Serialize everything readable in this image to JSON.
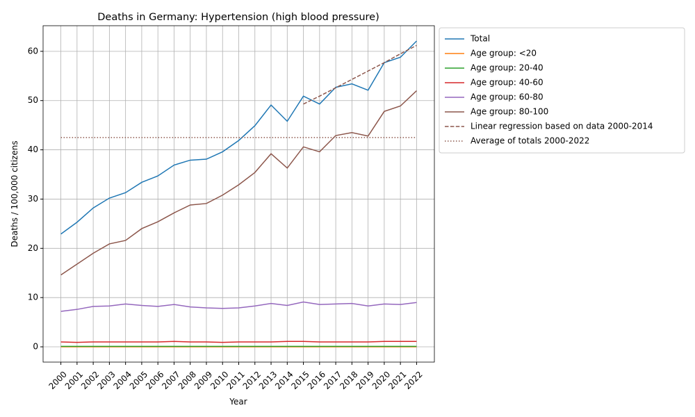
{
  "chart_data": {
    "type": "line",
    "title": "Deaths in Germany: Hypertension (high blood pressure)",
    "xlabel": "Year",
    "ylabel": "Deaths / 100,000 citizens",
    "x": [
      2000,
      2001,
      2002,
      2003,
      2004,
      2005,
      2006,
      2007,
      2008,
      2009,
      2010,
      2011,
      2012,
      2013,
      2014,
      2015,
      2016,
      2017,
      2018,
      2019,
      2020,
      2021,
      2022
    ],
    "series": [
      {
        "name": "Total",
        "color": "#1f77b4",
        "linestyle": "solid",
        "values": [
          22.9,
          25.3,
          28.2,
          30.2,
          31.3,
          33.4,
          34.7,
          36.9,
          37.9,
          38.1,
          39.6,
          41.9,
          44.9,
          49.1,
          45.8,
          50.9,
          49.3,
          52.7,
          53.4,
          52.1,
          57.7,
          58.8,
          62.1
        ]
      },
      {
        "name": "Age group: <20",
        "color": "#ff7f0e",
        "linestyle": "solid",
        "values": [
          0,
          0,
          0,
          0,
          0,
          0,
          0,
          0,
          0,
          0,
          0,
          0,
          0,
          0,
          0,
          0,
          0,
          0,
          0,
          0,
          0,
          0,
          0
        ]
      },
      {
        "name": "Age group: 20-40",
        "color": "#2ca02c",
        "linestyle": "solid",
        "values": [
          0.1,
          0.1,
          0.1,
          0.1,
          0.1,
          0.1,
          0.1,
          0.1,
          0.1,
          0.1,
          0.1,
          0.1,
          0.1,
          0.1,
          0.1,
          0.1,
          0.1,
          0.1,
          0.1,
          0.1,
          0.1,
          0.1,
          0.1
        ]
      },
      {
        "name": "Age group: 40-60",
        "color": "#d62728",
        "linestyle": "solid",
        "values": [
          1.0,
          0.9,
          1.0,
          1.0,
          1.0,
          1.0,
          1.0,
          1.1,
          1.0,
          1.0,
          0.9,
          1.0,
          1.0,
          1.0,
          1.1,
          1.1,
          1.0,
          1.0,
          1.0,
          1.0,
          1.1,
          1.1,
          1.1
        ]
      },
      {
        "name": "Age group: 60-80",
        "color": "#9467bd",
        "linestyle": "solid",
        "values": [
          7.2,
          7.6,
          8.2,
          8.3,
          8.7,
          8.4,
          8.2,
          8.6,
          8.1,
          7.9,
          7.8,
          7.9,
          8.3,
          8.8,
          8.4,
          9.1,
          8.6,
          8.7,
          8.8,
          8.3,
          8.7,
          8.6,
          9.0
        ]
      },
      {
        "name": "Age group: 80-100",
        "color": "#8c564b",
        "linestyle": "solid",
        "values": [
          14.6,
          16.8,
          19.0,
          20.9,
          21.6,
          24.0,
          25.4,
          27.2,
          28.8,
          29.1,
          30.8,
          32.9,
          35.4,
          39.2,
          36.3,
          40.6,
          39.6,
          42.9,
          43.5,
          42.8,
          47.8,
          48.9,
          52.0
        ]
      },
      {
        "name": "Linear regression based on data 2000-2014",
        "color": "#8c564b",
        "linestyle": "dashed",
        "values": [
          null,
          null,
          null,
          null,
          null,
          null,
          null,
          null,
          null,
          null,
          null,
          null,
          null,
          null,
          null,
          49.3,
          50.9,
          52.6,
          54.3,
          56.0,
          57.7,
          59.5,
          61.2
        ]
      },
      {
        "name": "Average of totals 2000-2022",
        "color": "#8c564b",
        "linestyle": "dotted",
        "values": [
          42.5,
          42.5,
          42.5,
          42.5,
          42.5,
          42.5,
          42.5,
          42.5,
          42.5,
          42.5,
          42.5,
          42.5,
          42.5,
          42.5,
          42.5,
          42.5,
          42.5,
          42.5,
          42.5,
          42.5,
          42.5,
          42.5,
          42.5
        ]
      }
    ],
    "xlim": [
      1998.9,
      2023.1
    ],
    "ylim": [
      -3.1,
      65.2
    ],
    "xticks": [
      2000,
      2001,
      2002,
      2003,
      2004,
      2005,
      2006,
      2007,
      2008,
      2009,
      2010,
      2011,
      2012,
      2013,
      2014,
      2015,
      2016,
      2017,
      2018,
      2019,
      2020,
      2021,
      2022
    ],
    "yticks": [
      0,
      10,
      20,
      30,
      40,
      50,
      60
    ],
    "grid": true,
    "legend": "outside-right"
  }
}
